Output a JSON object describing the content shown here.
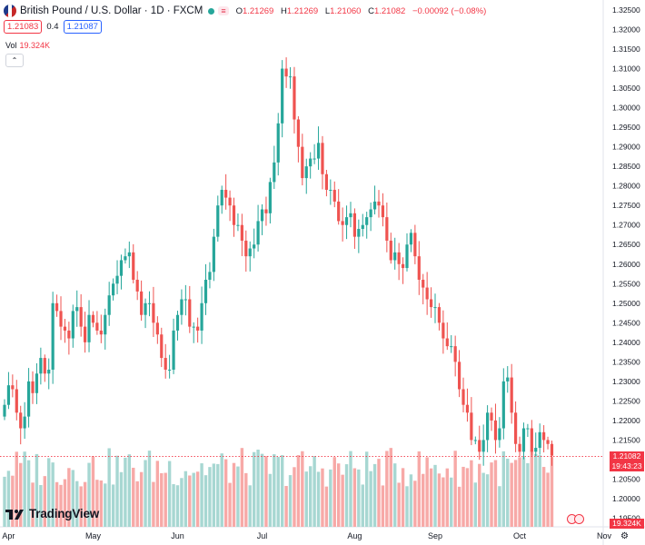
{
  "header": {
    "symbol_title": "British Pound / U.S. Dollar · 1D · FXCM",
    "currency_badge": "≡",
    "ohlc": [
      {
        "key": "O",
        "value": "1.21269"
      },
      {
        "key": "H",
        "value": "1.21269"
      },
      {
        "key": "L",
        "value": "1.21060"
      },
      {
        "key": "C",
        "value": "1.21082"
      }
    ],
    "change": "−0.00092 (−0.08%)",
    "sell_price": "1.21083",
    "spread": "0.4",
    "buy_price": "1.21087",
    "volume_label": "Vol",
    "volume_value": "19.324K",
    "collapse_glyph": "⌃"
  },
  "logo_text": "TradingView",
  "price_badges": {
    "last_price": "1.21082",
    "countdown": "19:43:23",
    "volume": "19.324K"
  },
  "colors": {
    "up": "#26a69a",
    "down": "#ef5350",
    "up_volume": "#a7d7d2",
    "down_volume": "#f7a9a7"
  },
  "chart_data": {
    "type": "candlestick",
    "title": "British Pound / U.S. Dollar · 1D · FXCM",
    "y_axis_ticks": [
      "1.32500",
      "1.32000",
      "1.31500",
      "1.31000",
      "1.30500",
      "1.30000",
      "1.29500",
      "1.29000",
      "1.28500",
      "1.28000",
      "1.27500",
      "1.27000",
      "1.26500",
      "1.26000",
      "1.25500",
      "1.25000",
      "1.24500",
      "1.24000",
      "1.23500",
      "1.23000",
      "1.22500",
      "1.22000",
      "1.21500",
      "1.21000",
      "1.20500",
      "1.20000",
      "1.19500"
    ],
    "ylim": [
      1.195,
      1.326
    ],
    "x_axis_ticks": [
      "Apr",
      "May",
      "Jun",
      "Jul",
      "Aug",
      "Sep",
      "Oct",
      "Nov"
    ],
    "x_tick_positions": [
      1,
      22,
      43,
      64,
      87,
      107,
      128,
      149
    ],
    "last_price": 1.21082,
    "closes": [
      1.224,
      1.229,
      1.228,
      1.222,
      1.218,
      1.221,
      1.23,
      1.227,
      1.232,
      1.236,
      1.232,
      1.233,
      1.25,
      1.248,
      1.244,
      1.243,
      1.241,
      1.248,
      1.249,
      1.244,
      1.24,
      1.247,
      1.245,
      1.243,
      1.242,
      1.247,
      1.252,
      1.255,
      1.257,
      1.261,
      1.262,
      1.263,
      1.256,
      1.253,
      1.247,
      1.25,
      1.25,
      1.245,
      1.242,
      1.236,
      1.233,
      1.233,
      1.243,
      1.247,
      1.251,
      1.251,
      1.244,
      1.244,
      1.243,
      1.25,
      1.256,
      1.258,
      1.267,
      1.275,
      1.279,
      1.277,
      1.275,
      1.27,
      1.27,
      1.266,
      1.262,
      1.264,
      1.265,
      1.271,
      1.274,
      1.273,
      1.281,
      1.286,
      1.296,
      1.31,
      1.308,
      1.308,
      1.297,
      1.29,
      1.282,
      1.285,
      1.287,
      1.287,
      1.291,
      1.283,
      1.279,
      1.279,
      1.276,
      1.271,
      1.27,
      1.272,
      1.273,
      1.267,
      1.269,
      1.27,
      1.272,
      1.274,
      1.276,
      1.275,
      1.272,
      1.266,
      1.261,
      1.263,
      1.26,
      1.259,
      1.265,
      1.268,
      1.262,
      1.256,
      1.254,
      1.251,
      1.249,
      1.249,
      1.245,
      1.241,
      1.239,
      1.239,
      1.235,
      1.228,
      1.224,
      1.222,
      1.215,
      1.215,
      1.212,
      1.215,
      1.222,
      1.22,
      1.215,
      1.218,
      1.23,
      1.231,
      1.222,
      1.214,
      1.212,
      1.218,
      1.218,
      1.212,
      1.213,
      1.217,
      1.215,
      1.214,
      1.211
    ],
    "volume_max_k": 35
  }
}
